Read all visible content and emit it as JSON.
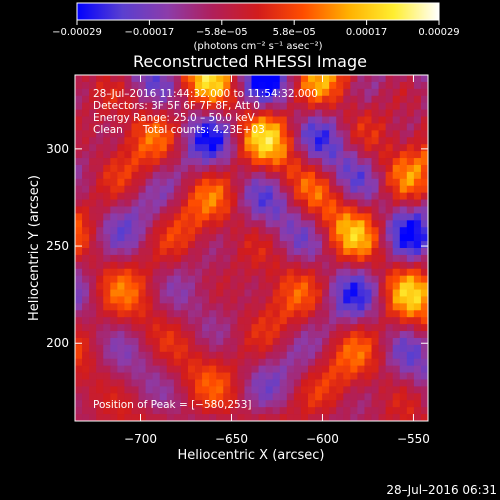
{
  "chart_data": {
    "type": "heatmap",
    "title": "Reconstructed RHESSI Image",
    "xlabel": "Heliocentric X (arcsec)",
    "ylabel": "Heliocentric Y (arcsec)",
    "xlim": [
      -736,
      -542
    ],
    "ylim": [
      160,
      338
    ],
    "x_ticks": [
      -700,
      -650,
      -600,
      -550
    ],
    "x_tick_labels": [
      "−700",
      "−650",
      "−600",
      "−550"
    ],
    "y_ticks": [
      200,
      250,
      300
    ],
    "y_tick_labels": [
      "200",
      "250",
      "300"
    ],
    "colorbar": {
      "range": [
        -0.00029,
        0.00029
      ],
      "unit_label": "(photons cm⁻² s⁻¹ asec⁻²)",
      "tick_labels": [
        "−0.00029",
        "−0.00017",
        "−5.8e−05",
        "5.8e−05",
        "0.00017",
        "0.00029"
      ],
      "colors": [
        "#0000ff",
        "#5a3fd0",
        "#8c3caa",
        "#b01f5a",
        "#d21c1c",
        "#ff4d00",
        "#ffb000",
        "#ffee30",
        "#ffffff"
      ]
    },
    "annotations": [
      "28–Jul–2016 11:44:32.000 to 11:54:32.000",
      "Detectors: 3F 5F 6F 7F 8F, Att 0",
      "Energy Range: 25.0 – 50.0 keV",
      "Clean      Total counts: 4.23E+03"
    ],
    "peak_label": "Position of Peak = [−580,253]",
    "peak": [
      -580,
      253
    ],
    "grid": false
  },
  "footer": {
    "timestamp": "28–Jul–2016 06:31"
  }
}
